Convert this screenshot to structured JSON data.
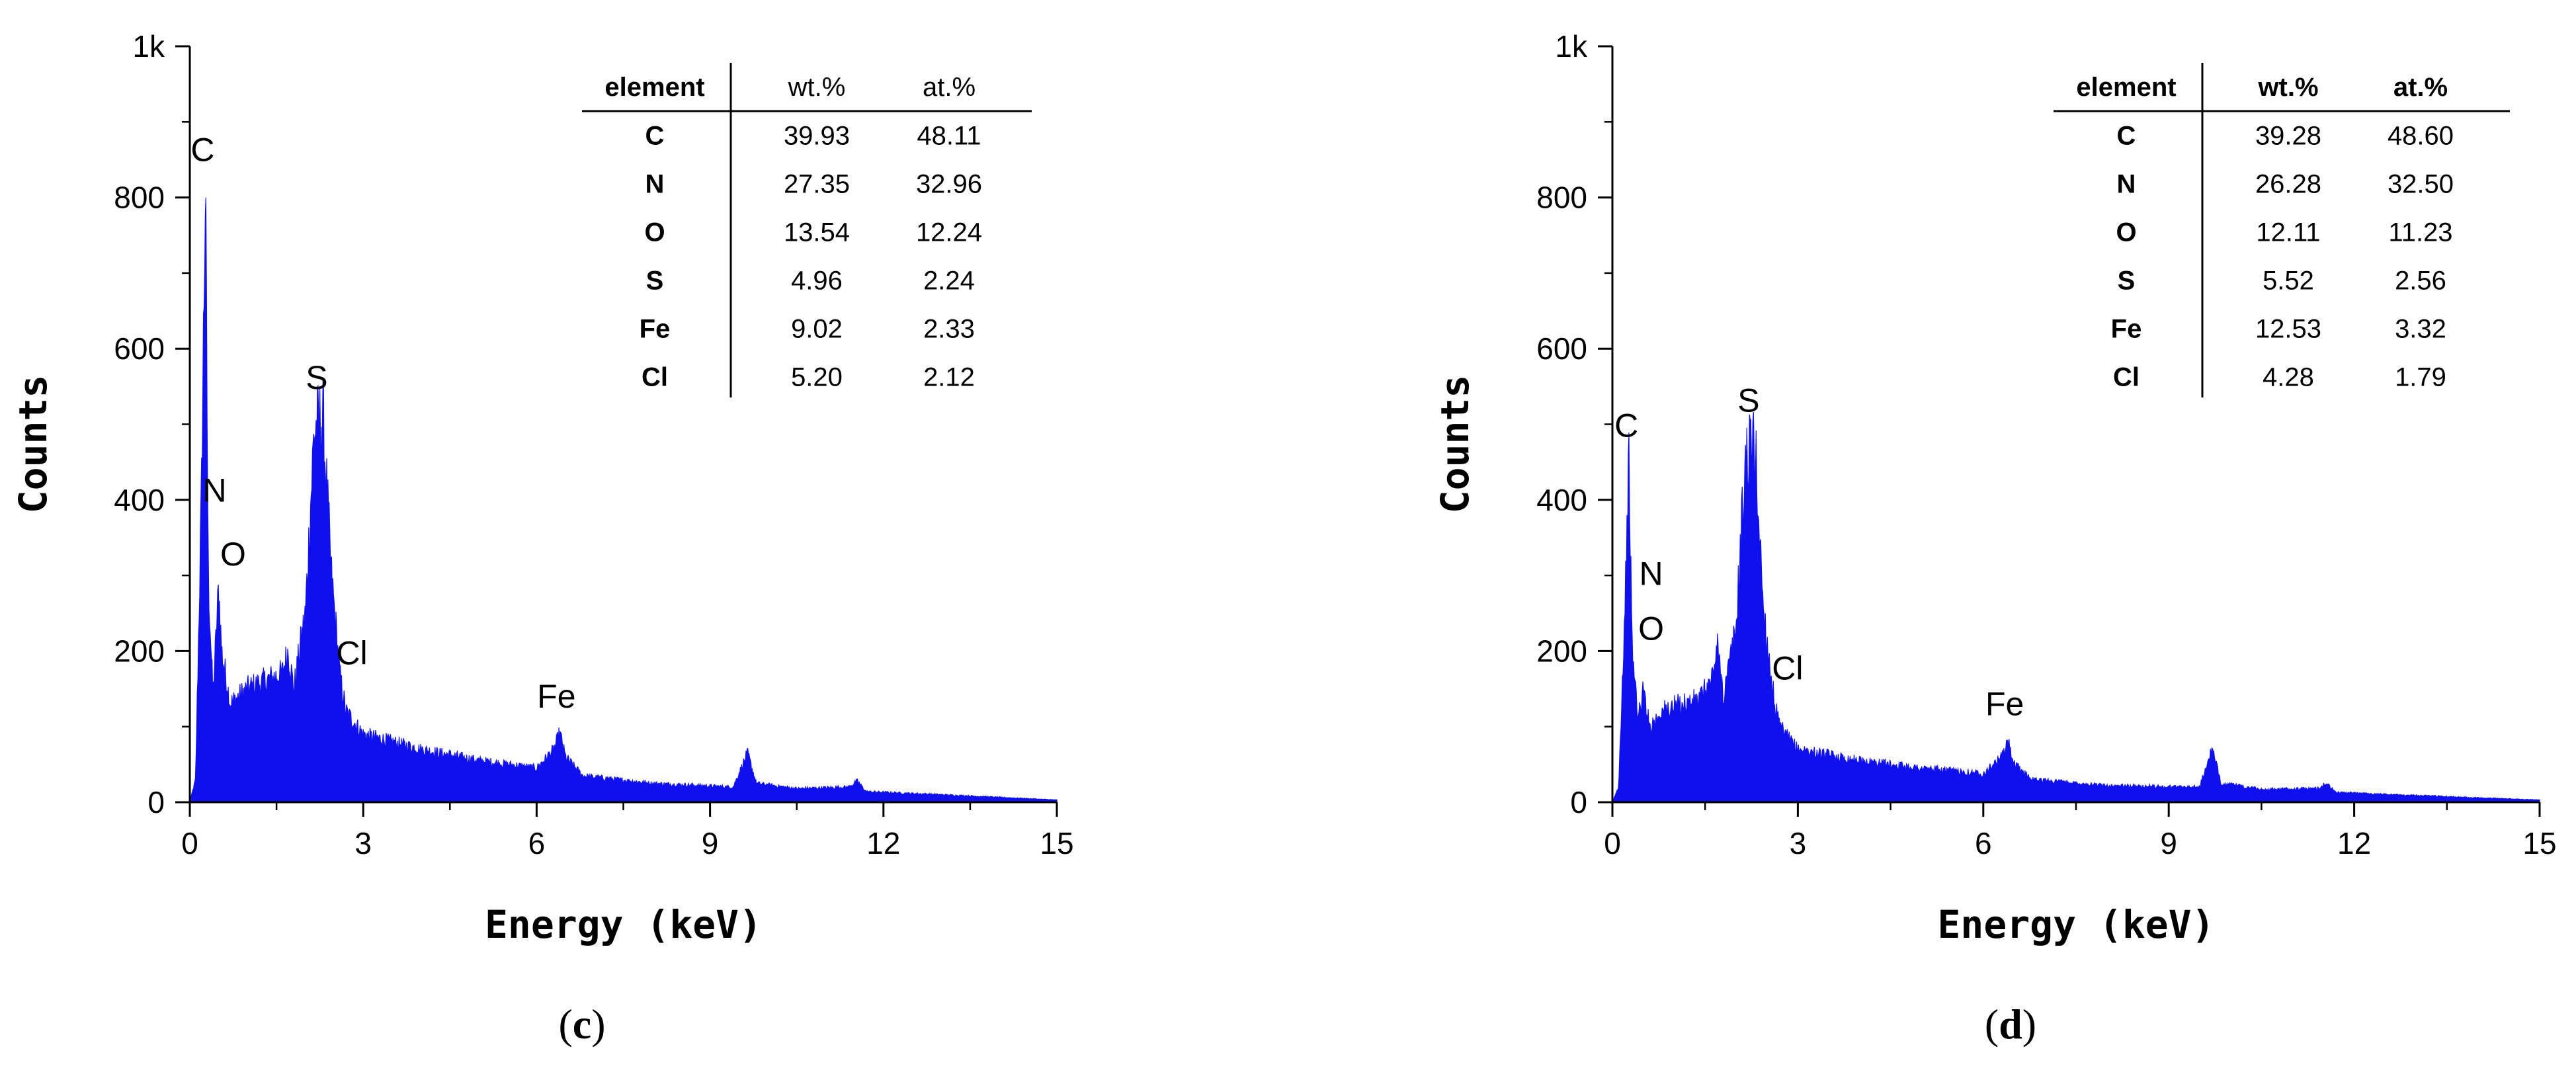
{
  "chart_data": [
    {
      "type": "area",
      "panel_label": "c",
      "xlabel": "Energy (keV)",
      "ylabel": "Counts",
      "xlim": [
        0,
        15
      ],
      "ylim": [
        0,
        1000
      ],
      "x_ticks": [
        "0",
        "3",
        "6",
        "9",
        "12",
        "15"
      ],
      "y_ticks": [
        "0",
        "200",
        "400",
        "600",
        "800",
        "1k"
      ],
      "series_color": "#1010ee",
      "peaks": [
        {
          "label": "C",
          "energy": 0.28,
          "counts": 815
        },
        {
          "label": "N",
          "energy": 0.39,
          "counts": 190
        },
        {
          "label": "O",
          "energy": 0.52,
          "counts": 285
        },
        {
          "label": "S",
          "energy": 2.31,
          "counts": 510
        },
        {
          "label": "Cl",
          "energy": 2.62,
          "counts": 165
        },
        {
          "label": "Fe",
          "energy": 6.4,
          "counts": 90
        }
      ],
      "spectrum_points": [
        [
          0,
          0
        ],
        [
          0.1,
          30
        ],
        [
          0.2,
          400
        ],
        [
          0.27,
          815
        ],
        [
          0.32,
          300
        ],
        [
          0.4,
          140
        ],
        [
          0.5,
          285
        ],
        [
          0.55,
          200
        ],
        [
          0.7,
          130
        ],
        [
          1.0,
          150
        ],
        [
          1.3,
          160
        ],
        [
          1.6,
          170
        ],
        [
          1.7,
          200
        ],
        [
          1.8,
          150
        ],
        [
          2.0,
          250
        ],
        [
          2.15,
          490
        ],
        [
          2.3,
          510
        ],
        [
          2.45,
          300
        ],
        [
          2.6,
          165
        ],
        [
          2.7,
          120
        ],
        [
          3.0,
          90
        ],
        [
          4.0,
          70
        ],
        [
          5.0,
          55
        ],
        [
          6.0,
          45
        ],
        [
          6.3,
          70
        ],
        [
          6.4,
          92
        ],
        [
          6.5,
          60
        ],
        [
          6.8,
          35
        ],
        [
          8.0,
          25
        ],
        [
          9.4,
          20
        ],
        [
          9.65,
          65
        ],
        [
          9.8,
          25
        ],
        [
          10.5,
          18
        ],
        [
          11.4,
          20
        ],
        [
          11.55,
          28
        ],
        [
          11.7,
          14
        ],
        [
          13.0,
          10
        ],
        [
          15.0,
          3
        ]
      ],
      "table": {
        "headers": [
          "element",
          "wt.%",
          "at.%"
        ],
        "rows": [
          [
            "C",
            "39.93",
            "48.11"
          ],
          [
            "N",
            "27.35",
            "32.96"
          ],
          [
            "O",
            "13.54",
            "12.24"
          ],
          [
            "S",
            "4.96",
            "2.24"
          ],
          [
            "Fe",
            "9.02",
            "2.33"
          ],
          [
            "Cl",
            "5.20",
            "2.12"
          ]
        ]
      }
    },
    {
      "type": "area",
      "panel_label": "d",
      "xlabel": "Energy (keV)",
      "ylabel": "Counts",
      "xlim": [
        0,
        15
      ],
      "ylim": [
        0,
        1000
      ],
      "x_ticks": [
        "0",
        "3",
        "6",
        "9",
        "12",
        "15"
      ],
      "y_ticks": [
        "0",
        "200",
        "400",
        "600",
        "800",
        "1k"
      ],
      "series_color": "#1010ee",
      "peaks": [
        {
          "label": "C",
          "energy": 0.28,
          "counts": 450
        },
        {
          "label": "N",
          "energy": 0.39,
          "counts": 150
        },
        {
          "label": "O",
          "energy": 0.52,
          "counts": 145
        },
        {
          "label": "S",
          "energy": 2.31,
          "counts": 480
        },
        {
          "label": "Cl",
          "energy": 2.62,
          "counts": 145
        },
        {
          "label": "Fe",
          "energy": 6.4,
          "counts": 80
        }
      ],
      "spectrum_points": [
        [
          0,
          0
        ],
        [
          0.1,
          20
        ],
        [
          0.2,
          250
        ],
        [
          0.27,
          450
        ],
        [
          0.32,
          200
        ],
        [
          0.42,
          110
        ],
        [
          0.5,
          150
        ],
        [
          0.6,
          100
        ],
        [
          0.8,
          120
        ],
        [
          1.1,
          130
        ],
        [
          1.4,
          135
        ],
        [
          1.6,
          160
        ],
        [
          1.7,
          205
        ],
        [
          1.8,
          140
        ],
        [
          2.0,
          230
        ],
        [
          2.15,
          450
        ],
        [
          2.3,
          480
        ],
        [
          2.45,
          250
        ],
        [
          2.6,
          145
        ],
        [
          2.7,
          100
        ],
        [
          3.0,
          70
        ],
        [
          4.0,
          55
        ],
        [
          5.0,
          45
        ],
        [
          6.0,
          38
        ],
        [
          6.3,
          60
        ],
        [
          6.4,
          80
        ],
        [
          6.5,
          50
        ],
        [
          6.8,
          30
        ],
        [
          8.0,
          22
        ],
        [
          9.5,
          20
        ],
        [
          9.7,
          70
        ],
        [
          9.85,
          25
        ],
        [
          10.5,
          17
        ],
        [
          11.4,
          18
        ],
        [
          11.55,
          25
        ],
        [
          11.7,
          13
        ],
        [
          13.0,
          9
        ],
        [
          15.0,
          3
        ]
      ],
      "table": {
        "headers": [
          "element",
          "wt.%",
          "at.%"
        ],
        "rows": [
          [
            "C",
            "39.28",
            "48.60"
          ],
          [
            "N",
            "26.28",
            "32.50"
          ],
          [
            "O",
            "12.11",
            "11.23"
          ],
          [
            "S",
            "5.52",
            "2.56"
          ],
          [
            "Fe",
            "12.53",
            "3.32"
          ],
          [
            "Cl",
            "4.28",
            "1.79"
          ]
        ]
      }
    }
  ]
}
